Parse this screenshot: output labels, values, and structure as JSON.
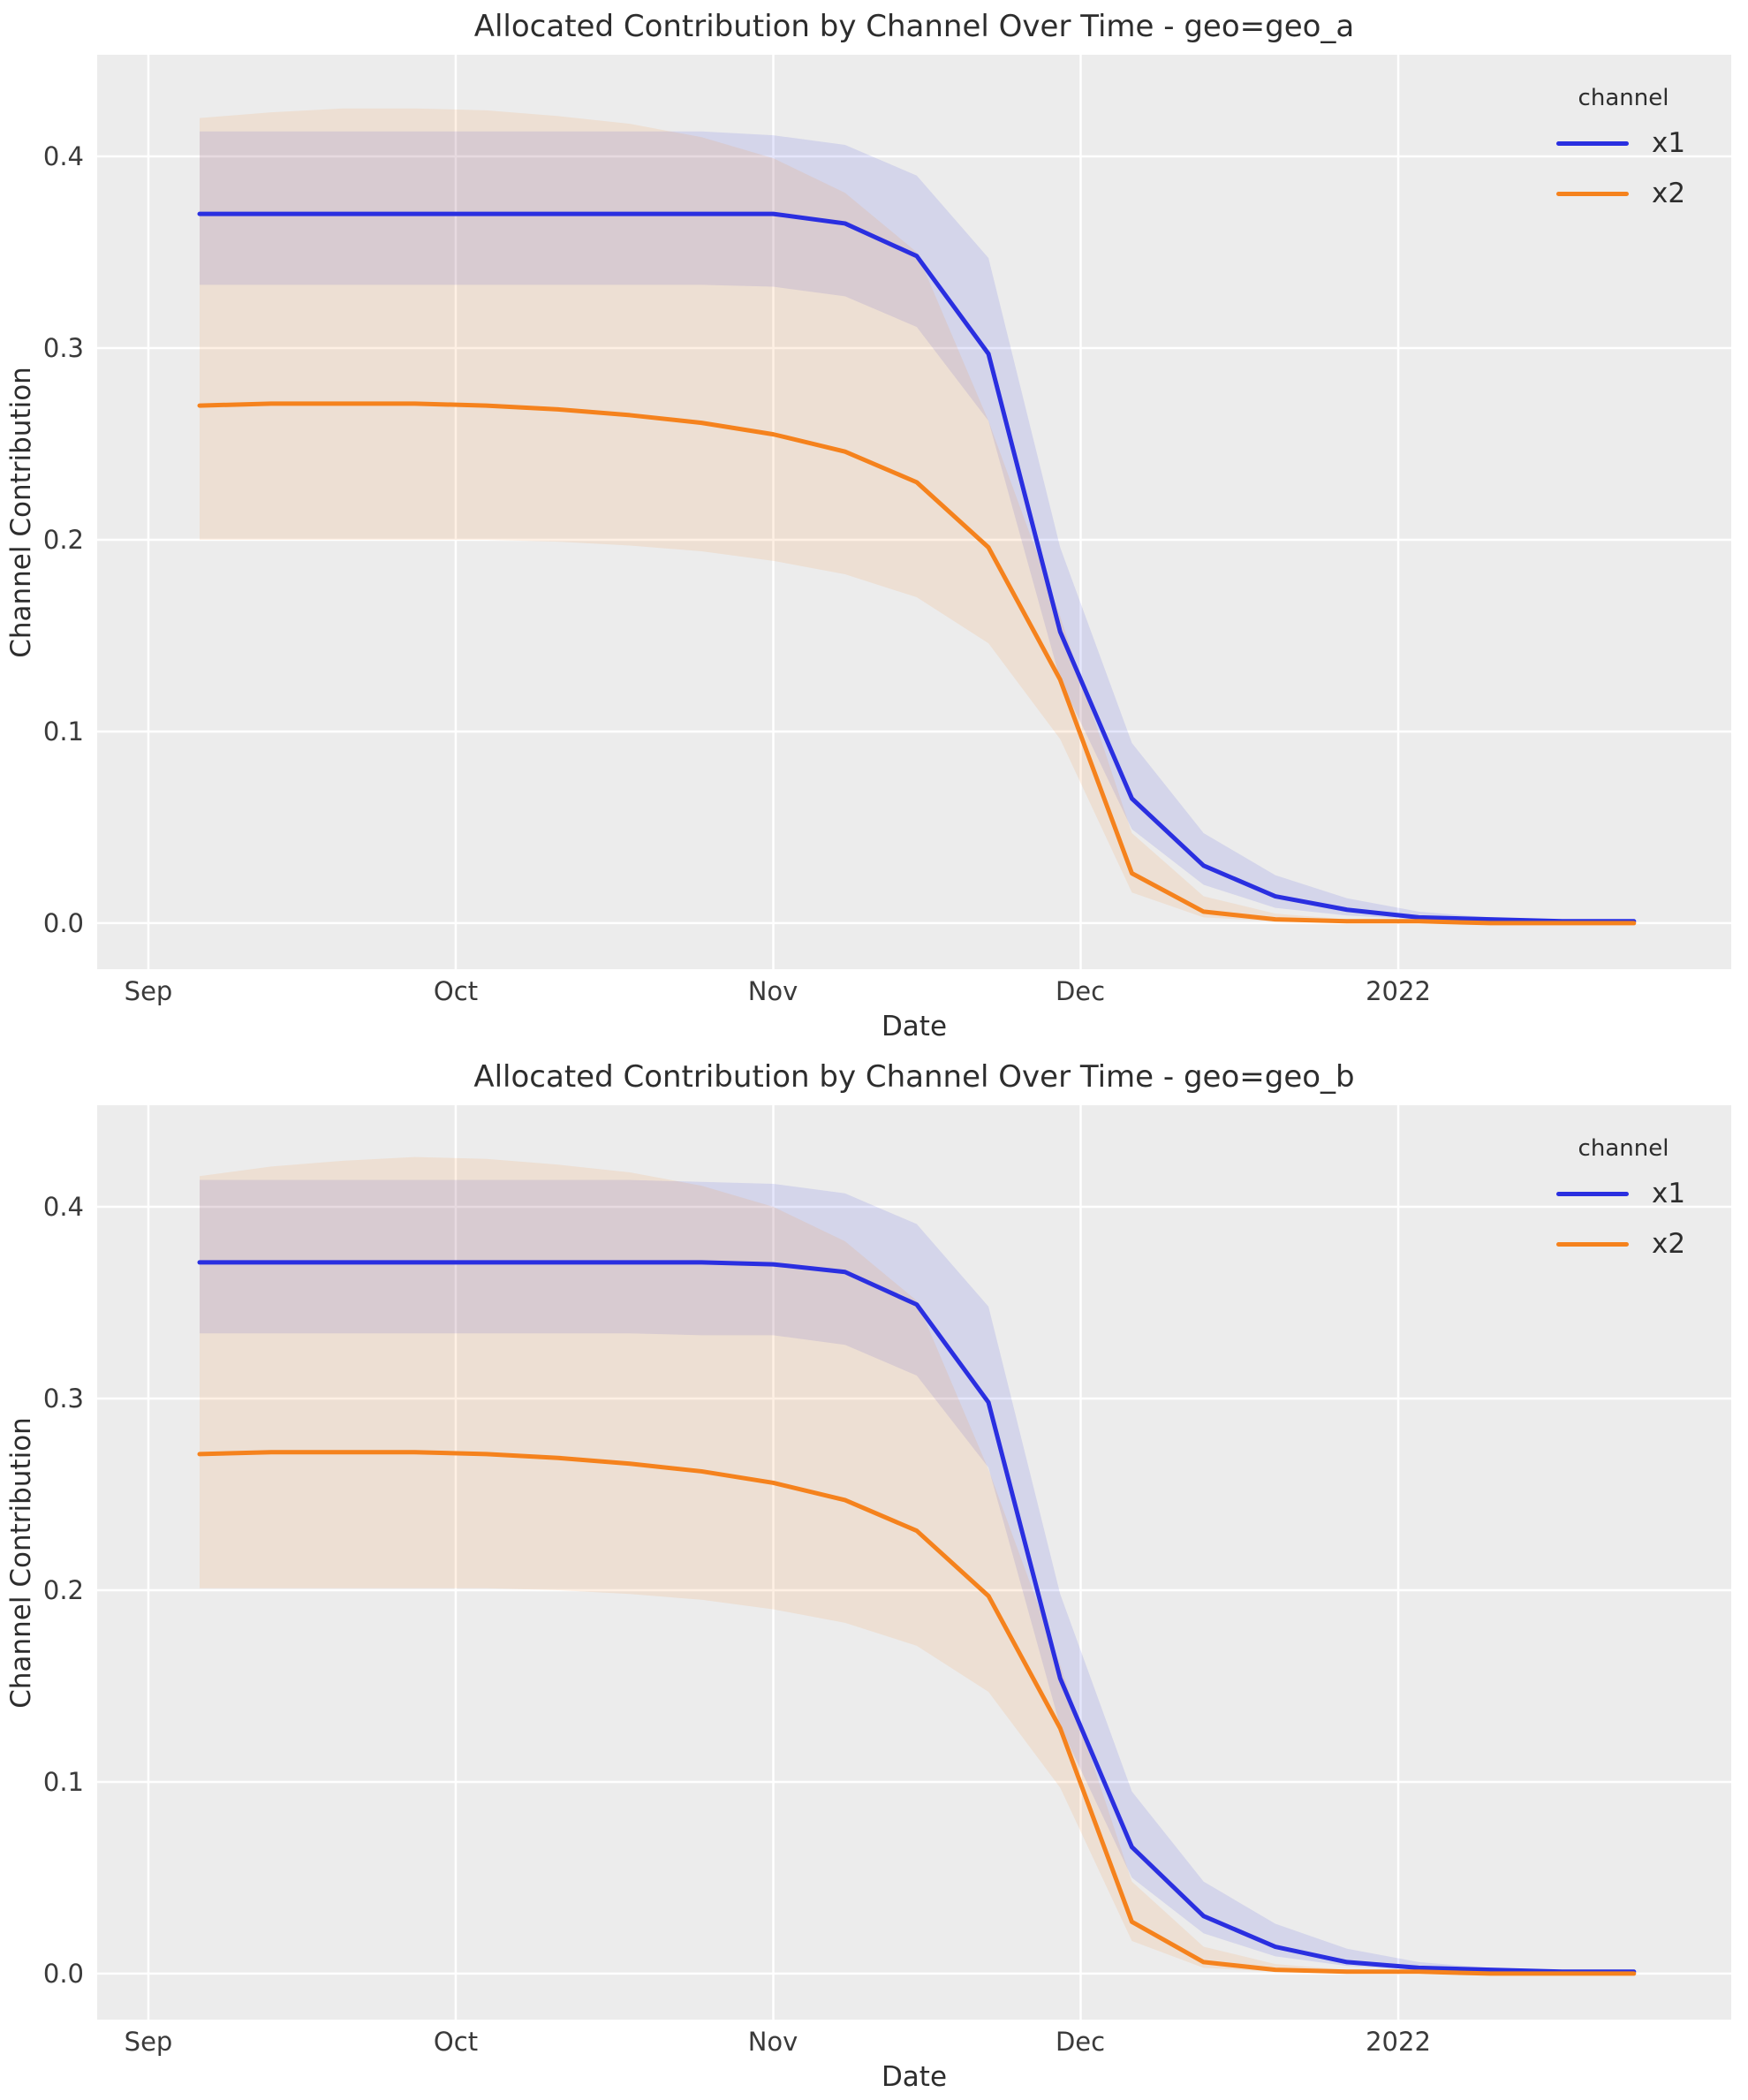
{
  "colors": {
    "x1": "#2a2fe0",
    "x2": "#f5821d",
    "axes_bg": "#ececec",
    "grid": "#ffffff",
    "figure_bg": "#ffffff",
    "text": "#2d2d2d",
    "band_opacity": 0.12
  },
  "chart_data": [
    {
      "type": "line",
      "title": "Allocated Contribution by Channel Over Time - geo=geo_a",
      "xlabel": "Date",
      "ylabel": "Channel Contribution",
      "x_tick_labels": [
        "Sep",
        "Oct",
        "Nov",
        "Dec",
        "2022"
      ],
      "x_tick_days": [
        0,
        30,
        61,
        91,
        122
      ],
      "y_tick_labels": [
        "0.0",
        "0.1",
        "0.2",
        "0.3",
        "0.4"
      ],
      "y_ticks": [
        0.0,
        0.1,
        0.2,
        0.3,
        0.4
      ],
      "xlim_days": [
        -5,
        154.5
      ],
      "ylim": [
        -0.024,
        0.453
      ],
      "grid": true,
      "legend": {
        "title": "channel",
        "position": "upper right",
        "entries": [
          "x1",
          "x2"
        ]
      },
      "dates": [
        "2021-09-06",
        "2021-09-13",
        "2021-09-20",
        "2021-09-27",
        "2021-10-04",
        "2021-10-11",
        "2021-10-18",
        "2021-10-25",
        "2021-11-01",
        "2021-11-08",
        "2021-11-15",
        "2021-11-22",
        "2021-11-29",
        "2021-12-06",
        "2021-12-13",
        "2021-12-20",
        "2021-12-27",
        "2022-01-03",
        "2022-01-10",
        "2022-01-17",
        "2022-01-24"
      ],
      "x_days": [
        5,
        12,
        19,
        26,
        33,
        40,
        47,
        54,
        61,
        68,
        75,
        82,
        89,
        96,
        103,
        110,
        117,
        124,
        131,
        138,
        145
      ],
      "series": [
        {
          "name": "x1",
          "color_key": "x1",
          "mean": [
            0.37,
            0.37,
            0.37,
            0.37,
            0.37,
            0.37,
            0.37,
            0.37,
            0.37,
            0.365,
            0.348,
            0.297,
            0.152,
            0.065,
            0.03,
            0.014,
            0.007,
            0.003,
            0.002,
            0.001,
            0.001
          ],
          "lower": [
            0.333,
            0.333,
            0.333,
            0.333,
            0.333,
            0.333,
            0.333,
            0.333,
            0.332,
            0.327,
            0.311,
            0.262,
            0.127,
            0.049,
            0.02,
            0.008,
            0.004,
            0.002,
            0.001,
            0.0,
            0.0
          ],
          "upper": [
            0.413,
            0.413,
            0.413,
            0.413,
            0.413,
            0.413,
            0.413,
            0.413,
            0.411,
            0.406,
            0.39,
            0.347,
            0.196,
            0.094,
            0.047,
            0.025,
            0.013,
            0.006,
            0.003,
            0.002,
            0.001
          ]
        },
        {
          "name": "x2",
          "color_key": "x2",
          "mean": [
            0.27,
            0.271,
            0.271,
            0.271,
            0.27,
            0.268,
            0.265,
            0.261,
            0.255,
            0.246,
            0.23,
            0.196,
            0.127,
            0.026,
            0.006,
            0.002,
            0.001,
            0.001,
            0.0,
            0.0,
            0.0
          ],
          "lower": [
            0.2,
            0.2,
            0.2,
            0.2,
            0.2,
            0.199,
            0.197,
            0.194,
            0.189,
            0.182,
            0.17,
            0.146,
            0.096,
            0.016,
            0.003,
            0.001,
            0.0,
            0.0,
            0.0,
            0.0,
            0.0
          ],
          "upper": [
            0.42,
            0.423,
            0.425,
            0.425,
            0.424,
            0.421,
            0.417,
            0.41,
            0.399,
            0.381,
            0.35,
            0.262,
            0.16,
            0.047,
            0.014,
            0.005,
            0.002,
            0.001,
            0.001,
            0.0,
            0.0
          ]
        }
      ]
    },
    {
      "type": "line",
      "title": "Allocated Contribution by Channel Over Time - geo=geo_b",
      "xlabel": "Date",
      "ylabel": "Channel Contribution",
      "x_tick_labels": [
        "Sep",
        "Oct",
        "Nov",
        "Dec",
        "2022"
      ],
      "x_tick_days": [
        0,
        30,
        61,
        91,
        122
      ],
      "y_tick_labels": [
        "0.0",
        "0.1",
        "0.2",
        "0.3",
        "0.4"
      ],
      "y_ticks": [
        0.0,
        0.1,
        0.2,
        0.3,
        0.4
      ],
      "xlim_days": [
        -5,
        154.5
      ],
      "ylim": [
        -0.024,
        0.453
      ],
      "grid": true,
      "legend": {
        "title": "channel",
        "position": "upper right",
        "entries": [
          "x1",
          "x2"
        ]
      },
      "dates": [
        "2021-09-06",
        "2021-09-13",
        "2021-09-20",
        "2021-09-27",
        "2021-10-04",
        "2021-10-11",
        "2021-10-18",
        "2021-10-25",
        "2021-11-01",
        "2021-11-08",
        "2021-11-15",
        "2021-11-22",
        "2021-11-29",
        "2021-12-06",
        "2021-12-13",
        "2021-12-20",
        "2021-12-27",
        "2022-01-03",
        "2022-01-10",
        "2022-01-17",
        "2022-01-24"
      ],
      "x_days": [
        5,
        12,
        19,
        26,
        33,
        40,
        47,
        54,
        61,
        68,
        75,
        82,
        89,
        96,
        103,
        110,
        117,
        124,
        131,
        138,
        145
      ],
      "series": [
        {
          "name": "x1",
          "color_key": "x1",
          "mean": [
            0.371,
            0.371,
            0.371,
            0.371,
            0.371,
            0.371,
            0.371,
            0.371,
            0.37,
            0.366,
            0.349,
            0.298,
            0.154,
            0.066,
            0.03,
            0.014,
            0.006,
            0.003,
            0.002,
            0.001,
            0.001
          ],
          "lower": [
            0.334,
            0.334,
            0.334,
            0.334,
            0.334,
            0.334,
            0.334,
            0.333,
            0.333,
            0.328,
            0.312,
            0.264,
            0.129,
            0.05,
            0.021,
            0.009,
            0.004,
            0.002,
            0.001,
            0.0,
            0.0
          ],
          "upper": [
            0.414,
            0.414,
            0.414,
            0.414,
            0.414,
            0.414,
            0.414,
            0.413,
            0.412,
            0.407,
            0.391,
            0.348,
            0.198,
            0.095,
            0.048,
            0.026,
            0.013,
            0.006,
            0.003,
            0.002,
            0.001
          ]
        },
        {
          "name": "x2",
          "color_key": "x2",
          "mean": [
            0.271,
            0.272,
            0.272,
            0.272,
            0.271,
            0.269,
            0.266,
            0.262,
            0.256,
            0.247,
            0.231,
            0.197,
            0.128,
            0.027,
            0.006,
            0.002,
            0.001,
            0.001,
            0.0,
            0.0,
            0.0
          ],
          "lower": [
            0.201,
            0.201,
            0.201,
            0.201,
            0.201,
            0.2,
            0.198,
            0.195,
            0.19,
            0.183,
            0.171,
            0.147,
            0.097,
            0.017,
            0.003,
            0.001,
            0.0,
            0.0,
            0.0,
            0.0,
            0.0
          ],
          "upper": [
            0.416,
            0.421,
            0.424,
            0.426,
            0.425,
            0.422,
            0.418,
            0.411,
            0.4,
            0.382,
            0.351,
            0.263,
            0.161,
            0.048,
            0.014,
            0.005,
            0.002,
            0.001,
            0.001,
            0.0,
            0.0
          ]
        }
      ]
    }
  ]
}
